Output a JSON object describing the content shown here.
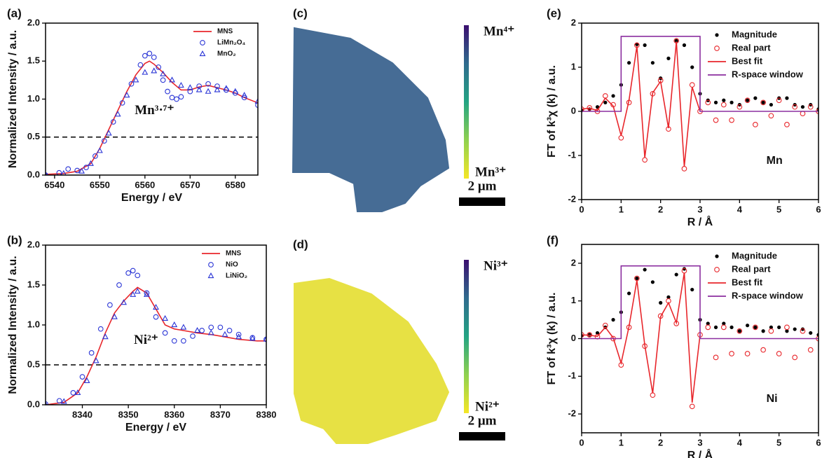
{
  "chart_data": [
    {
      "type": "line",
      "panel_label": "(a)",
      "x_label": "Energy / eV",
      "y_label": "Normalized Intensity / a.u.",
      "annotation": "Mn³·⁷⁺",
      "xlim": [
        6538,
        6585
      ],
      "xticks": [
        6540,
        6550,
        6560,
        6570,
        6580
      ],
      "ylim": [
        0,
        2
      ],
      "yticks": [
        {
          "value": 0,
          "label": "0.0"
        },
        0.5,
        {
          "value": 1,
          "label": "1.0"
        },
        1.5,
        {
          "value": 2,
          "label": "2.0"
        }
      ],
      "hline": 0.5,
      "legend": "upper right",
      "series": [
        {
          "name": "MNS",
          "color": "#e8262b",
          "style": "line",
          "x": [
            6538,
            6542,
            6545,
            6548,
            6550,
            6552,
            6554,
            6556,
            6558,
            6560,
            6561,
            6562,
            6564,
            6566,
            6568,
            6570,
            6572,
            6574,
            6576,
            6578,
            6580,
            6582,
            6585
          ],
          "values": [
            0.01,
            0.02,
            0.05,
            0.15,
            0.35,
            0.6,
            0.85,
            1.1,
            1.32,
            1.47,
            1.5,
            1.46,
            1.35,
            1.22,
            1.12,
            1.12,
            1.16,
            1.18,
            1.15,
            1.12,
            1.08,
            1.02,
            0.95
          ]
        },
        {
          "name": "LiMn₂O₄",
          "color": "#2a35d6",
          "style": "circle",
          "x": [
            6538,
            6541,
            6543,
            6545,
            6547,
            6549,
            6551,
            6553,
            6555,
            6557,
            6559,
            6560,
            6561,
            6562,
            6563,
            6564,
            6565,
            6566,
            6567,
            6568,
            6570,
            6572,
            6574,
            6576,
            6578,
            6580,
            6582,
            6585
          ],
          "values": [
            0.0,
            0.03,
            0.08,
            0.06,
            0.1,
            0.25,
            0.45,
            0.7,
            0.95,
            1.2,
            1.45,
            1.57,
            1.6,
            1.55,
            1.42,
            1.25,
            1.1,
            1.02,
            1.0,
            1.03,
            1.1,
            1.17,
            1.2,
            1.17,
            1.12,
            1.08,
            1.02,
            0.92
          ]
        },
        {
          "name": "MnO₂",
          "color": "#2a35d6",
          "style": "triangle",
          "x": [
            6538,
            6542,
            6546,
            6548,
            6550,
            6552,
            6554,
            6556,
            6558,
            6560,
            6562,
            6564,
            6566,
            6568,
            6570,
            6572,
            6574,
            6576,
            6578,
            6580,
            6582,
            6585
          ],
          "values": [
            0.0,
            0.02,
            0.05,
            0.15,
            0.32,
            0.55,
            0.8,
            1.05,
            1.25,
            1.35,
            1.37,
            1.33,
            1.25,
            1.18,
            1.15,
            1.12,
            1.1,
            1.12,
            1.14,
            1.1,
            1.05,
            0.97
          ]
        }
      ]
    },
    {
      "type": "line",
      "panel_label": "(b)",
      "x_label": "Energy / eV",
      "y_label": "Normalized Intensity / a.u.",
      "annotation": "Ni²⁺",
      "xlim": [
        8332,
        8380
      ],
      "xticks": [
        8340,
        8350,
        8360,
        8370,
        8380
      ],
      "ylim": [
        0,
        2
      ],
      "yticks": [
        {
          "value": 0,
          "label": "0.0"
        },
        0.5,
        {
          "value": 1,
          "label": "1.0"
        },
        1.5,
        {
          "value": 2,
          "label": "2.0"
        }
      ],
      "hline": 0.5,
      "legend": "upper right",
      "series": [
        {
          "name": "MNS",
          "color": "#e8262b",
          "style": "line",
          "x": [
            8332,
            8336,
            8339,
            8341,
            8343,
            8345,
            8347,
            8349,
            8351,
            8352,
            8354,
            8356,
            8358,
            8360,
            8362,
            8365,
            8368,
            8370,
            8374,
            8378,
            8380
          ],
          "values": [
            0.0,
            0.03,
            0.15,
            0.35,
            0.6,
            0.9,
            1.15,
            1.3,
            1.42,
            1.47,
            1.4,
            1.2,
            1.0,
            0.95,
            0.93,
            0.9,
            0.88,
            0.86,
            0.82,
            0.8,
            0.8
          ]
        },
        {
          "name": "NiO",
          "color": "#2a35d6",
          "style": "circle",
          "x": [
            8332,
            8335,
            8338,
            8340,
            8342,
            8344,
            8346,
            8348,
            8350,
            8351,
            8352,
            8354,
            8356,
            8358,
            8360,
            8362,
            8364,
            8366,
            8368,
            8370,
            8372,
            8374,
            8377,
            8380
          ],
          "values": [
            0.01,
            0.05,
            0.15,
            0.35,
            0.65,
            0.95,
            1.25,
            1.5,
            1.65,
            1.68,
            1.62,
            1.4,
            1.1,
            0.9,
            0.8,
            0.8,
            0.86,
            0.93,
            0.97,
            0.97,
            0.93,
            0.88,
            0.84,
            0.82
          ]
        },
        {
          "name": "LiNiO₂",
          "color": "#2a35d6",
          "style": "triangle",
          "x": [
            8332,
            8336,
            8339,
            8341,
            8343,
            8345,
            8347,
            8349,
            8351,
            8352,
            8354,
            8356,
            8358,
            8360,
            8362,
            8365,
            8368,
            8371,
            8374,
            8377,
            8380
          ],
          "values": [
            0.0,
            0.04,
            0.15,
            0.3,
            0.55,
            0.85,
            1.1,
            1.28,
            1.38,
            1.42,
            1.38,
            1.22,
            1.08,
            1.0,
            0.97,
            0.93,
            0.9,
            0.88,
            0.85,
            0.83,
            0.82
          ]
        }
      ]
    },
    {
      "type": "map",
      "panel_label": "(c)",
      "top_label": "Mn⁴⁺",
      "bottom_label": "Mn³⁺",
      "scale_bar": "2 μm",
      "map_color": "#3d6590",
      "colorbar_colors": [
        "#3b0f6f",
        "#2f6b8e",
        "#23a483",
        "#8fd14f",
        "#f5e626"
      ]
    },
    {
      "type": "map",
      "panel_label": "(d)",
      "top_label": "Ni³⁺",
      "bottom_label": "Ni²⁺",
      "scale_bar": "2 μm",
      "map_color": "#e6e03a",
      "colorbar_colors": [
        "#3b0f6f",
        "#2f6b8e",
        "#23a483",
        "#8fd14f",
        "#f5e626"
      ]
    },
    {
      "type": "line",
      "panel_label": "(e)",
      "x_label": "R / Å",
      "y_label": "FT of k³χ (k) / a.u.",
      "annotation": "Mn",
      "xlim": [
        0,
        6
      ],
      "xticks": [
        0,
        1,
        2,
        3,
        4,
        5,
        6
      ],
      "ylim": [
        -2,
        2
      ],
      "yticks": [
        -2,
        -1,
        0,
        1,
        2
      ],
      "legend": "upper right",
      "series": [
        {
          "name": "Magnitude",
          "color": "#000000",
          "style": "dot",
          "x": [
            0,
            0.2,
            0.4,
            0.6,
            0.8,
            1.0,
            1.2,
            1.4,
            1.6,
            1.8,
            2.0,
            2.2,
            2.4,
            2.6,
            2.8,
            3.0,
            3.2,
            3.4,
            3.6,
            3.8,
            4.0,
            4.2,
            4.4,
            4.6,
            4.8,
            5.0,
            5.2,
            5.4,
            5.6,
            5.8,
            6.0
          ],
          "values": [
            0.02,
            0.05,
            0.1,
            0.2,
            0.35,
            0.6,
            1.1,
            1.52,
            1.5,
            1.1,
            0.75,
            1.2,
            1.6,
            1.5,
            1.0,
            0.4,
            0.25,
            0.2,
            0.25,
            0.2,
            0.15,
            0.25,
            0.3,
            0.2,
            0.15,
            0.3,
            0.3,
            0.15,
            0.1,
            0.15,
            0.05
          ]
        },
        {
          "name": "Real part",
          "color": "#e8262b",
          "style": "circle",
          "x": [
            0,
            0.2,
            0.4,
            0.6,
            0.8,
            1.0,
            1.2,
            1.4,
            1.6,
            1.8,
            2.0,
            2.2,
            2.4,
            2.6,
            2.8,
            3.0,
            3.2,
            3.4,
            3.6,
            3.8,
            4.0,
            4.2,
            4.4,
            4.6,
            4.8,
            5.0,
            5.2,
            5.4,
            5.6,
            5.8,
            6.0
          ],
          "values": [
            0.05,
            0.08,
            0.0,
            0.35,
            0.15,
            -0.6,
            0.2,
            1.5,
            -1.1,
            0.4,
            0.7,
            -0.4,
            1.6,
            -1.3,
            0.6,
            0.0,
            0.2,
            -0.2,
            0.15,
            -0.2,
            0.1,
            0.25,
            -0.3,
            0.2,
            -0.1,
            0.25,
            -0.3,
            0.1,
            -0.05,
            0.1,
            0.0
          ]
        },
        {
          "name": "Best fit",
          "color": "#e8262b",
          "style": "line",
          "x": [
            0,
            0.2,
            0.4,
            0.6,
            0.8,
            1.0,
            1.2,
            1.4,
            1.6,
            1.8,
            2.0,
            2.2,
            2.4,
            2.6,
            2.8,
            3.0
          ],
          "values": [
            0.05,
            0.07,
            0.02,
            0.3,
            0.12,
            -0.55,
            0.25,
            1.48,
            -1.05,
            0.42,
            0.68,
            -0.38,
            1.58,
            -1.25,
            0.55,
            0.0
          ]
        },
        {
          "name": "R-space window",
          "color": "#8b2e9f",
          "style": "line",
          "x": [
            0,
            1,
            1,
            3,
            3,
            6
          ],
          "values": [
            0,
            0,
            1.7,
            1.7,
            0,
            0
          ]
        }
      ]
    },
    {
      "type": "line",
      "panel_label": "(f)",
      "x_label": "R / Å",
      "y_label": "FT of k³χ (k) / a.u.",
      "annotation": "Ni",
      "xlim": [
        0,
        6
      ],
      "xticks": [
        0,
        1,
        2,
        3,
        4,
        5,
        6
      ],
      "ylim": [
        -2.5,
        2.5
      ],
      "yticks": [
        -2,
        -1,
        0,
        1,
        2
      ],
      "legend": "upper right",
      "series": [
        {
          "name": "Magnitude",
          "color": "#000000",
          "style": "dot",
          "x": [
            0,
            0.2,
            0.4,
            0.6,
            0.8,
            1.0,
            1.2,
            1.4,
            1.6,
            1.8,
            2.0,
            2.2,
            2.4,
            2.6,
            2.8,
            3.0,
            3.2,
            3.4,
            3.6,
            3.8,
            4.0,
            4.2,
            4.4,
            4.6,
            4.8,
            5.0,
            5.2,
            5.4,
            5.6,
            5.8,
            6.0
          ],
          "values": [
            0.08,
            0.1,
            0.15,
            0.3,
            0.5,
            0.7,
            1.2,
            1.6,
            1.83,
            1.5,
            0.95,
            1.1,
            1.7,
            1.85,
            1.3,
            0.5,
            0.4,
            0.3,
            0.4,
            0.3,
            0.2,
            0.35,
            0.3,
            0.2,
            0.3,
            0.3,
            0.2,
            0.25,
            0.25,
            0.15,
            0.1
          ]
        },
        {
          "name": "Real part",
          "color": "#e8262b",
          "style": "circle",
          "x": [
            0,
            0.2,
            0.4,
            0.6,
            0.8,
            1.0,
            1.2,
            1.4,
            1.6,
            1.8,
            2.0,
            2.2,
            2.4,
            2.6,
            2.8,
            3.0,
            3.2,
            3.4,
            3.6,
            3.8,
            4.0,
            4.2,
            4.4,
            4.6,
            4.8,
            5.0,
            5.2,
            5.4,
            5.6,
            5.8,
            6.0
          ],
          "values": [
            0.1,
            0.1,
            0.05,
            0.35,
            0.0,
            -0.7,
            0.3,
            1.6,
            -0.2,
            -1.5,
            0.6,
            1.0,
            0.4,
            1.8,
            -1.8,
            0.1,
            0.3,
            -0.5,
            0.3,
            -0.4,
            0.2,
            -0.4,
            0.3,
            -0.3,
            0.2,
            -0.4,
            0.3,
            -0.5,
            0.2,
            -0.3,
            0.0
          ]
        },
        {
          "name": "Best fit",
          "color": "#e8262b",
          "style": "line",
          "x": [
            0,
            0.2,
            0.4,
            0.6,
            0.8,
            1.0,
            1.2,
            1.4,
            1.6,
            1.8,
            2.0,
            2.2,
            2.4,
            2.6,
            2.8,
            3.0
          ],
          "values": [
            0.1,
            0.09,
            0.06,
            0.3,
            0.02,
            -0.65,
            0.32,
            1.55,
            -0.18,
            -1.45,
            0.58,
            0.95,
            0.42,
            1.75,
            -1.7,
            0.1
          ]
        },
        {
          "name": "R-space window",
          "color": "#8b2e9f",
          "style": "line",
          "x": [
            0,
            1,
            1,
            3,
            3,
            6
          ],
          "values": [
            0,
            0,
            1.93,
            1.93,
            0,
            0
          ]
        }
      ]
    }
  ]
}
